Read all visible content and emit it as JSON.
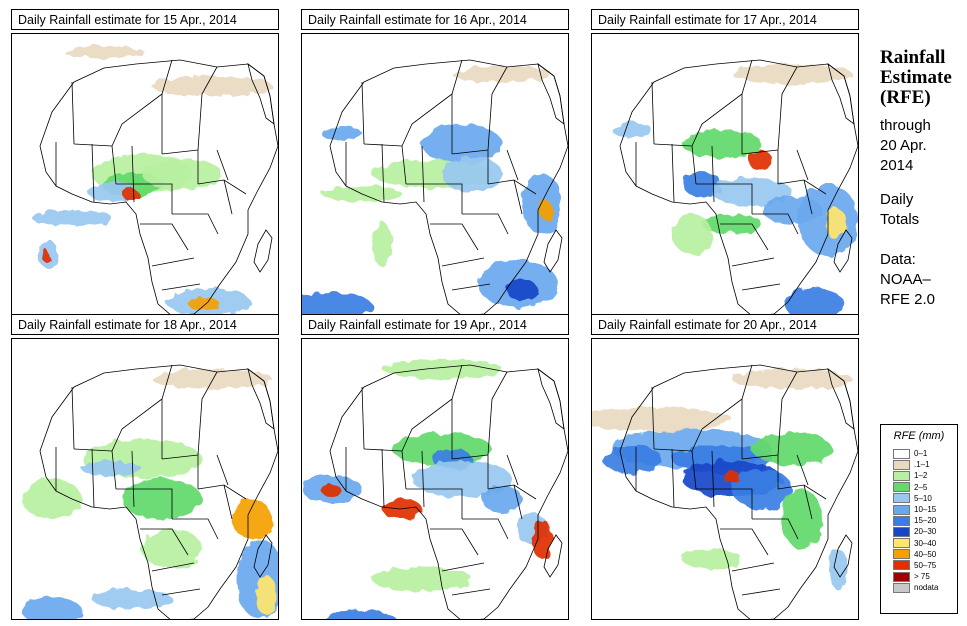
{
  "panels": [
    {
      "title": "Daily Rainfall estimate for  15 Apr., 2014",
      "key": "p15"
    },
    {
      "title": "Daily Rainfall estimate for  16 Apr., 2014",
      "key": "p16"
    },
    {
      "title": "Daily Rainfall estimate for  17 Apr., 2014",
      "key": "p17"
    },
    {
      "title": "Daily Rainfall estimate for  18 Apr., 2014",
      "key": "p18"
    },
    {
      "title": "Daily Rainfall estimate for  19 Apr., 2014",
      "key": "p19"
    },
    {
      "title": "Daily Rainfall estimate for  20 Apr., 2014",
      "key": "p20"
    }
  ],
  "side": {
    "title_line1": "Rainfall",
    "title_line2": "Estimate",
    "title_line3": "(RFE)",
    "through": "through",
    "date_line1": "20 Apr.",
    "date_line2": "2014",
    "daily": "Daily",
    "totals": "Totals",
    "data_label": "Data:",
    "source1": "NOAA–",
    "source2": "RFE 2.0"
  },
  "legend": {
    "title": "RFE (mm)",
    "items": [
      {
        "label": "0–1",
        "color": "#ffffff"
      },
      {
        "label": ".1–1",
        "color": "#e8d9c0"
      },
      {
        "label": "1–2",
        "color": "#b7f0a0"
      },
      {
        "label": "2–5",
        "color": "#62d96a"
      },
      {
        "label": "5–10",
        "color": "#98c8f0"
      },
      {
        "label": "10–15",
        "color": "#6aa8ee"
      },
      {
        "label": "15–20",
        "color": "#3a7ee4"
      },
      {
        "label": "20–30",
        "color": "#1846c8"
      },
      {
        "label": "30–40",
        "color": "#ffe66e"
      },
      {
        "label": "40–50",
        "color": "#f5a000"
      },
      {
        "label": "50–75",
        "color": "#e03000"
      },
      {
        "label": "> 75",
        "color": "#a00000"
      },
      {
        "label": "nodata",
        "color": "#c8c8c8"
      }
    ]
  }
}
